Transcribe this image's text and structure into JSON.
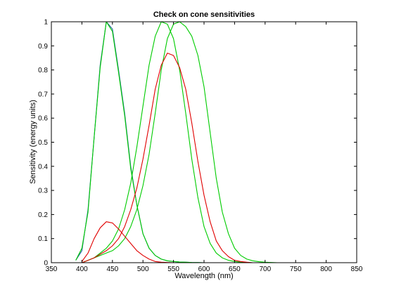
{
  "chart_data": {
    "type": "line",
    "title": "Check on cone sensitivities",
    "xlabel": "Wavelength (nm)",
    "ylabel": "Sensitivity (energy units)",
    "xlim": [
      350,
      850
    ],
    "ylim": [
      0,
      1
    ],
    "xticks": [
      350,
      400,
      450,
      500,
      550,
      600,
      650,
      700,
      750,
      800,
      850
    ],
    "yticks": [
      0,
      0.1,
      0.2,
      0.3,
      0.4,
      0.5,
      0.6,
      0.7,
      0.8,
      0.9,
      1
    ],
    "grid": false,
    "legend": "none",
    "series": [
      {
        "color": "#1f5fa0",
        "x": [
          390,
          400,
          410,
          420,
          430,
          440,
          450,
          460,
          470,
          480,
          490,
          500,
          510,
          520,
          530,
          540,
          550,
          560,
          570,
          580,
          590,
          600,
          610,
          620,
          630,
          640,
          650,
          660,
          670,
          680,
          690,
          700,
          750,
          800,
          830
        ],
        "y": [
          0.01,
          0.05,
          0.22,
          0.52,
          0.82,
          1.0,
          0.97,
          0.8,
          0.62,
          0.4,
          0.24,
          0.12,
          0.06,
          0.03,
          0.015,
          0.008,
          0.005,
          0.003,
          0.002,
          0.001,
          0.0005,
          0,
          0,
          0,
          0,
          0,
          0,
          0,
          0,
          0,
          0,
          0,
          0,
          0,
          0
        ]
      },
      {
        "color": "#00cc00",
        "x": [
          390,
          400,
          410,
          420,
          430,
          440,
          450,
          460,
          470,
          480,
          490,
          500,
          510,
          520,
          530,
          540,
          550,
          560,
          570,
          580,
          590,
          600,
          610,
          620,
          630,
          640,
          650,
          660,
          670,
          680,
          690,
          700,
          750,
          800,
          830
        ],
        "y": [
          0.01,
          0.06,
          0.21,
          0.52,
          0.81,
          1.0,
          0.96,
          0.79,
          0.61,
          0.39,
          0.24,
          0.12,
          0.06,
          0.03,
          0.015,
          0.008,
          0.005,
          0.003,
          0.002,
          0.001,
          0.0005,
          0,
          0,
          0,
          0,
          0,
          0,
          0,
          0,
          0,
          0,
          0,
          0,
          0,
          0
        ]
      },
      {
        "color": "#00cc00",
        "x": [
          400,
          410,
          420,
          430,
          440,
          450,
          460,
          470,
          480,
          490,
          500,
          510,
          520,
          530,
          540,
          550,
          560,
          570,
          580,
          590,
          600,
          610,
          620,
          630,
          640,
          650,
          660,
          670,
          680,
          690,
          700,
          750,
          800,
          830
        ],
        "y": [
          0,
          0.01,
          0.02,
          0.04,
          0.06,
          0.09,
          0.14,
          0.22,
          0.33,
          0.48,
          0.65,
          0.82,
          0.94,
          1.0,
          0.99,
          0.93,
          0.8,
          0.62,
          0.43,
          0.27,
          0.15,
          0.08,
          0.04,
          0.02,
          0.01,
          0.005,
          0.002,
          0.001,
          0,
          0,
          0,
          0,
          0,
          0
        ]
      },
      {
        "color": "#00cc00",
        "x": [
          400,
          410,
          420,
          430,
          440,
          450,
          460,
          470,
          480,
          490,
          500,
          510,
          520,
          530,
          540,
          550,
          560,
          570,
          580,
          590,
          600,
          610,
          620,
          630,
          640,
          650,
          660,
          670,
          680,
          690,
          700,
          710,
          720,
          750,
          800,
          830
        ],
        "y": [
          0,
          0.01,
          0.02,
          0.03,
          0.04,
          0.05,
          0.07,
          0.1,
          0.15,
          0.22,
          0.32,
          0.45,
          0.62,
          0.8,
          0.93,
          0.99,
          1.0,
          0.98,
          0.94,
          0.86,
          0.73,
          0.54,
          0.35,
          0.21,
          0.12,
          0.06,
          0.03,
          0.015,
          0.008,
          0.004,
          0.002,
          0.001,
          0,
          0,
          0,
          0
        ]
      },
      {
        "color": "#e00000",
        "x": [
          400,
          410,
          420,
          430,
          440,
          450,
          460,
          470,
          480,
          490,
          500,
          510,
          520,
          530,
          540,
          550,
          560,
          570,
          580,
          590,
          600,
          610,
          620,
          630,
          640,
          650,
          660,
          670,
          680,
          690,
          700,
          750,
          800,
          830
        ],
        "y": [
          0.005,
          0.04,
          0.1,
          0.145,
          0.17,
          0.165,
          0.14,
          0.11,
          0.08,
          0.05,
          0.03,
          0.015,
          0.005,
          0.002,
          0.001,
          0,
          0,
          0,
          0,
          0,
          0,
          0,
          0,
          0,
          0,
          0,
          0,
          0,
          0,
          0,
          0,
          0,
          0,
          0
        ]
      },
      {
        "color": "#e00000",
        "x": [
          400,
          410,
          420,
          430,
          440,
          450,
          460,
          470,
          480,
          490,
          500,
          510,
          520,
          530,
          540,
          550,
          560,
          570,
          580,
          590,
          600,
          610,
          620,
          630,
          640,
          650,
          660,
          670,
          680,
          690,
          700,
          750,
          800,
          830
        ],
        "y": [
          0,
          0.01,
          0.02,
          0.035,
          0.05,
          0.07,
          0.1,
          0.15,
          0.22,
          0.31,
          0.43,
          0.57,
          0.72,
          0.82,
          0.87,
          0.86,
          0.81,
          0.72,
          0.58,
          0.42,
          0.28,
          0.17,
          0.09,
          0.05,
          0.025,
          0.01,
          0.005,
          0.002,
          0,
          0,
          0,
          0,
          0,
          0
        ]
      }
    ]
  }
}
